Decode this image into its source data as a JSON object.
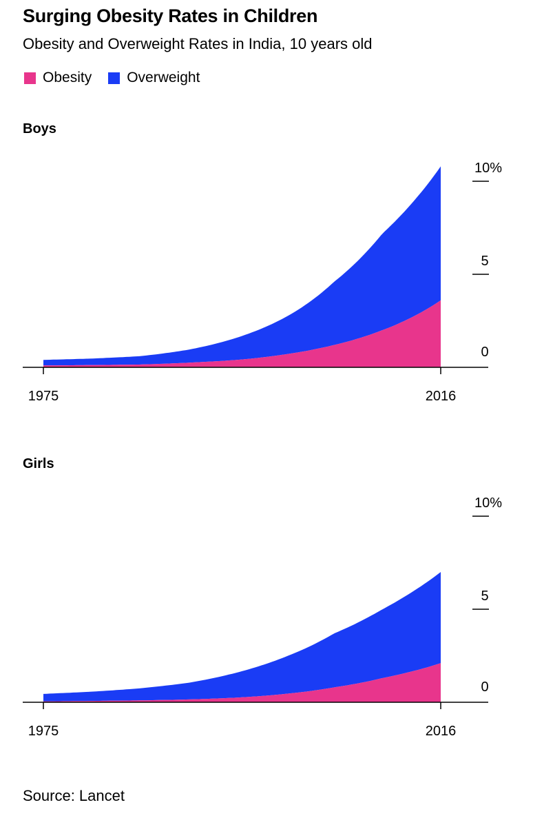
{
  "title": "Surging Obesity Rates in Children",
  "subtitle": "Obesity and Overweight Rates in India, 10 years old",
  "legend": [
    {
      "label": "Obesity",
      "color": "#e8358c"
    },
    {
      "label": "Overweight",
      "color": "#1a3cf5"
    }
  ],
  "source": "Source: Lancet",
  "chart_data": [
    {
      "type": "area",
      "title": "Boys",
      "x": [
        1975,
        1980,
        1985,
        1990,
        1995,
        2000,
        2005,
        2010,
        2016
      ],
      "x_tick_labels": [
        "1975",
        "2016"
      ],
      "y_tick_labels": [
        "10%",
        "5",
        "0"
      ],
      "y_ticks": [
        10,
        5,
        0
      ],
      "ylim": [
        0,
        10
      ],
      "series": [
        {
          "name": "Obesity",
          "color": "#e8358c",
          "values": [
            0.1,
            0.12,
            0.15,
            0.25,
            0.4,
            0.7,
            1.2,
            2.0,
            3.6
          ]
        },
        {
          "name": "Overweight",
          "color": "#1a3cf5",
          "values": [
            0.3,
            0.35,
            0.45,
            0.7,
            1.2,
            2.0,
            3.4,
            5.2,
            7.2
          ]
        }
      ]
    },
    {
      "type": "area",
      "title": "Girls",
      "x": [
        1975,
        1980,
        1985,
        1990,
        1995,
        2000,
        2005,
        2010,
        2016
      ],
      "x_tick_labels": [
        "1975",
        "2016"
      ],
      "y_tick_labels": [
        "10%",
        "5",
        "0"
      ],
      "y_ticks": [
        10,
        5,
        0
      ],
      "ylim": [
        0,
        10
      ],
      "series": [
        {
          "name": "Obesity",
          "color": "#e8358c",
          "values": [
            0.05,
            0.07,
            0.1,
            0.15,
            0.25,
            0.45,
            0.8,
            1.3,
            2.1
          ]
        },
        {
          "name": "Overweight",
          "color": "#1a3cf5",
          "values": [
            0.4,
            0.5,
            0.65,
            0.9,
            1.35,
            2.0,
            2.9,
            3.7,
            4.9
          ]
        }
      ]
    }
  ]
}
